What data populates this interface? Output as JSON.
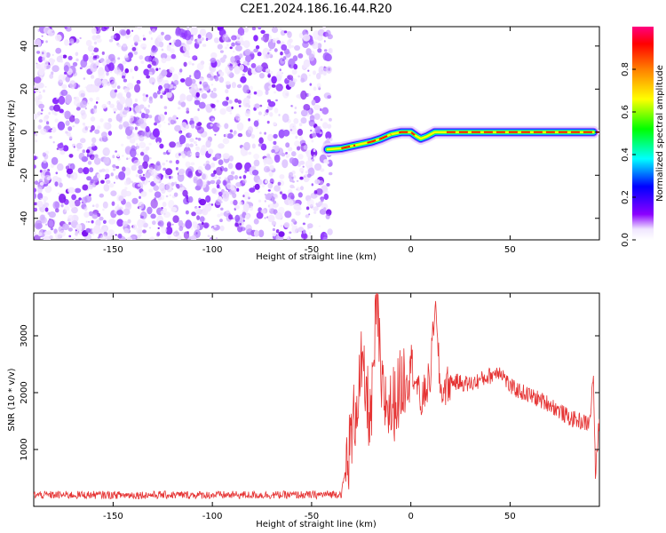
{
  "figure": {
    "title": "C2E1.2024.186.16.44.R20"
  },
  "chart_data": [
    {
      "type": "heatmap",
      "title": "",
      "xlabel": "Height of straight line (km)",
      "ylabel": "Frequency (Hz)",
      "xlim": [
        -190,
        95
      ],
      "ylim": [
        -50,
        49
      ],
      "x_ticks": [
        -150,
        -100,
        -50,
        0,
        50
      ],
      "y_ticks": [
        -40,
        -20,
        0,
        20,
        40
      ],
      "grid": false,
      "noise_region_x": [
        -190,
        -40
      ],
      "signal_track": {
        "x": [
          -42,
          -35,
          -30,
          -25,
          -20,
          -15,
          -10,
          -5,
          0,
          3,
          5,
          8,
          12,
          20,
          40,
          60,
          80,
          92
        ],
        "frequency": [
          -8,
          -7.5,
          -6.5,
          -5.5,
          -4.5,
          -3,
          -1,
          0,
          0,
          -2,
          -3,
          -2,
          0,
          0,
          0,
          0,
          0,
          0
        ]
      },
      "colorbar": {
        "label": "Normalized spectral amplitude",
        "range": [
          0,
          1
        ],
        "ticks": [
          0.0,
          0.2,
          0.4,
          0.6,
          0.8
        ]
      }
    },
    {
      "type": "line",
      "title": "",
      "xlabel": "Height of straight line (km)",
      "ylabel": "SNR (10 * v/v)",
      "xlim": [
        -190,
        95
      ],
      "ylim": [
        0,
        3750
      ],
      "x_ticks": [
        -150,
        -100,
        -50,
        0,
        50
      ],
      "y_ticks": [
        1000,
        2000,
        3000
      ],
      "grid": false,
      "series": [
        {
          "color": "#e53333",
          "x": [
            -190,
            -150,
            -100,
            -50,
            -35,
            -30,
            -25,
            -20,
            -17,
            -15,
            -10,
            -5,
            0,
            5,
            10,
            12,
            15,
            20,
            30,
            40,
            45,
            50,
            60,
            70,
            80,
            85,
            90,
            92,
            93,
            95
          ],
          "y": [
            200,
            200,
            200,
            200,
            220,
            1200,
            2400,
            1500,
            3700,
            2000,
            1700,
            2100,
            2600,
            1800,
            2300,
            3600,
            2000,
            2200,
            2150,
            2300,
            2400,
            2100,
            1950,
            1800,
            1550,
            1500,
            1450,
            2300,
            500,
            1600
          ]
        }
      ]
    }
  ]
}
